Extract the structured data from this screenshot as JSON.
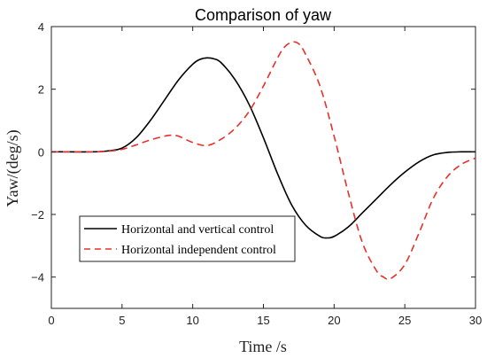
{
  "chart_data": {
    "type": "line",
    "title": "Comparison of yaw",
    "xlabel": "Time /s",
    "ylabel": "Yaw/(deg/s)",
    "xlim": [
      0,
      30
    ],
    "ylim": [
      -5,
      4
    ],
    "xticks": [
      0,
      5,
      10,
      15,
      20,
      25,
      30
    ],
    "yticks": [
      -4,
      -2,
      0,
      2,
      4
    ],
    "grid": false,
    "legend_position": "lower-left",
    "series": [
      {
        "name": "Horizontal and vertical control",
        "color": "#000000",
        "dash": "solid",
        "x": [
          0,
          3,
          4,
          5,
          6,
          7,
          8,
          9,
          10,
          10.5,
          11,
          11.5,
          12,
          13,
          14,
          15,
          16,
          17,
          18,
          19,
          19.5,
          20,
          21,
          22,
          23,
          24,
          25,
          26,
          27,
          28,
          29,
          30
        ],
        "y": [
          0,
          0,
          0.03,
          0.12,
          0.45,
          1.0,
          1.65,
          2.3,
          2.8,
          2.95,
          3.0,
          2.97,
          2.85,
          2.3,
          1.5,
          0.45,
          -0.7,
          -1.7,
          -2.35,
          -2.7,
          -2.75,
          -2.7,
          -2.4,
          -1.95,
          -1.5,
          -1.05,
          -0.65,
          -0.32,
          -0.1,
          -0.02,
          0,
          0
        ]
      },
      {
        "name": "Horizontal independent control",
        "color": "#e8302a",
        "dash": "dashed",
        "x": [
          0,
          3,
          4,
          5,
          6,
          7,
          8,
          8.5,
          9,
          10,
          11,
          12,
          13,
          14,
          15,
          16,
          16.5,
          17,
          17.5,
          18,
          19,
          20,
          21,
          22,
          23,
          23.5,
          24,
          25,
          26,
          27,
          28,
          29,
          30
        ],
        "y": [
          0,
          0,
          0.02,
          0.08,
          0.22,
          0.38,
          0.5,
          0.53,
          0.5,
          0.3,
          0.2,
          0.4,
          0.75,
          1.3,
          2.1,
          3.0,
          3.35,
          3.5,
          3.45,
          3.1,
          2.1,
          0.5,
          -1.3,
          -2.9,
          -3.8,
          -4.0,
          -4.05,
          -3.6,
          -2.6,
          -1.5,
          -0.8,
          -0.4,
          -0.2
        ]
      }
    ]
  }
}
